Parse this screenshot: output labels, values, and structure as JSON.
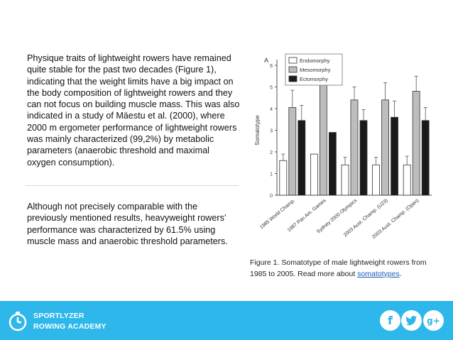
{
  "body": {
    "paragraph1": "Physique traits of lightweight rowers have remained quite stable for the past two decades (Figure 1), indicating that the weight limits have a big impact on the body composition of lightweight rowers and they can not focus on building muscle mass. This was also indicated in a study of Mäestu et al. (2000), where 2000 m ergometer performance of lightweight rowers was mainly characterized (99,2%) by metabolic parameters (anaerobic threshold and maximal oxygen consumption).",
    "paragraph2": "Although not precisely comparable with the previously mentioned results, heavyweight rowers’ performance was characterized by 61.5% using muscle mass and anaerobic threshold parameters."
  },
  "figure": {
    "caption_text": "Figure 1. Somatotype of male lightweight rowers from 1985 to 2005. Read more about ",
    "caption_link": "somatotypes",
    "caption_end": ".",
    "panel_label": "A"
  },
  "chart_data": {
    "type": "bar",
    "categories": [
      "1985 World Champ.",
      "1987 Pan Am. Games",
      "Sydney 2000 Olympics",
      "2003 Aust. Champ. (U23)",
      "2003 Aust. Champ. (Open)"
    ],
    "series": [
      {
        "name": "Endomorphy",
        "values": [
          1.6,
          1.9,
          1.4,
          1.4,
          1.4
        ],
        "errors": [
          0.3,
          0.0,
          0.35,
          0.35,
          0.4
        ],
        "color": "#ffffff"
      },
      {
        "name": "Mesomorphy",
        "values": [
          4.05,
          5.1,
          4.4,
          4.4,
          4.8
        ],
        "errors": [
          0.8,
          0.0,
          0.6,
          0.8,
          0.7
        ],
        "color": "#bdbdbd"
      },
      {
        "name": "Ectomorphy",
        "values": [
          3.45,
          2.9,
          3.45,
          3.6,
          3.45
        ],
        "errors": [
          0.7,
          0.0,
          0.5,
          0.75,
          0.6
        ],
        "color": "#1a1a1a"
      }
    ],
    "ylabel": "Somatotype",
    "ylim": [
      0,
      6
    ],
    "yticks": [
      0,
      1,
      2,
      3,
      4,
      5,
      6
    ],
    "legend_position": "top-right"
  },
  "footer": {
    "brand_line1": "SPORTLYZER",
    "brand_line2": "ROWING ACADEMY",
    "facebook_glyph": "f",
    "googleplus_glyph": "g+",
    "accent_color": "#2db7ea"
  }
}
